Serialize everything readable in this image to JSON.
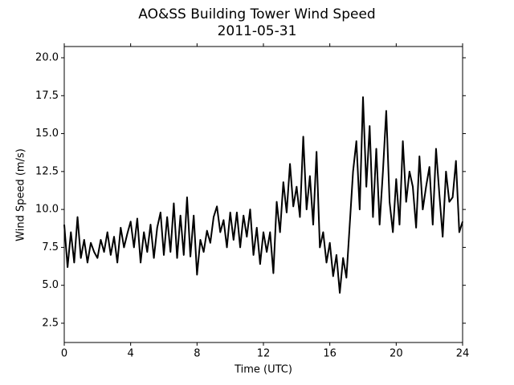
{
  "chart_data": {
    "type": "line",
    "title": "AO&SS Building Tower Wind Speed",
    "subtitle": "2011-05-31",
    "x_label": "Time (UTC)",
    "y_label": "Wind Speed (m/s)",
    "x": [
      0,
      0.2,
      0.4,
      0.6,
      0.8,
      1,
      1.2,
      1.4,
      1.6,
      1.8,
      2,
      2.2,
      2.4,
      2.6,
      2.8,
      3,
      3.2,
      3.4,
      3.6,
      3.8,
      4,
      4.2,
      4.4,
      4.6,
      4.8,
      5,
      5.2,
      5.4,
      5.6,
      5.8,
      6,
      6.2,
      6.4,
      6.6,
      6.8,
      7,
      7.2,
      7.4,
      7.6,
      7.8,
      8,
      8.2,
      8.4,
      8.6,
      8.8,
      9,
      9.2,
      9.4,
      9.6,
      9.8,
      10,
      10.2,
      10.4,
      10.6,
      10.8,
      11,
      11.2,
      11.4,
      11.6,
      11.8,
      12,
      12.2,
      12.4,
      12.6,
      12.8,
      13,
      13.2,
      13.4,
      13.6,
      13.8,
      14,
      14.2,
      14.4,
      14.6,
      14.8,
      15,
      15.2,
      15.4,
      15.6,
      15.8,
      16,
      16.2,
      16.4,
      16.6,
      16.8,
      17,
      17.2,
      17.4,
      17.6,
      17.8,
      18,
      18.2,
      18.4,
      18.6,
      18.8,
      19,
      19.2,
      19.4,
      19.6,
      19.8,
      20,
      20.2,
      20.4,
      20.6,
      20.8,
      21,
      21.2,
      21.4,
      21.6,
      21.8,
      22,
      22.2,
      22.4,
      22.6,
      22.8,
      23,
      23.2,
      23.4,
      23.6,
      23.8,
      24
    ],
    "series": [
      {
        "name": "Wind Speed",
        "color": "#000000",
        "values": [
          9.0,
          6.2,
          8.5,
          6.5,
          9.5,
          6.8,
          8.0,
          6.5,
          7.8,
          7.2,
          6.8,
          8.0,
          7.2,
          8.5,
          7.0,
          8.2,
          6.5,
          8.8,
          7.5,
          8.4,
          9.2,
          7.5,
          9.4,
          6.5,
          8.5,
          7.2,
          9.0,
          6.8,
          8.8,
          9.8,
          7.0,
          9.5,
          7.2,
          10.4,
          6.8,
          9.6,
          7.0,
          10.8,
          6.9,
          9.6,
          5.7,
          8.0,
          7.2,
          8.6,
          7.8,
          9.5,
          10.2,
          8.5,
          9.3,
          7.5,
          9.8,
          8.0,
          9.8,
          7.5,
          9.6,
          8.2,
          10.0,
          7.0,
          8.8,
          6.4,
          8.5,
          7.2,
          8.5,
          5.8,
          10.5,
          8.5,
          11.8,
          9.8,
          13.0,
          10.2,
          11.5,
          9.5,
          14.8,
          10.0,
          12.2,
          9.0,
          13.8,
          7.5,
          8.5,
          6.5,
          7.8,
          5.6,
          7.0,
          4.5,
          6.8,
          5.5,
          9.0,
          12.5,
          14.5,
          10.0,
          17.4,
          11.5,
          15.5,
          9.5,
          14.0,
          9.0,
          12.5,
          16.5,
          10.5,
          8.5,
          12.0,
          9.0,
          14.5,
          10.5,
          12.5,
          11.5,
          8.8,
          13.5,
          10.0,
          11.5,
          12.8,
          9.0,
          14.0,
          11.0,
          8.2,
          12.5,
          10.5,
          10.8,
          13.2,
          8.5,
          9.2
        ]
      }
    ],
    "xlim": [
      0,
      24
    ],
    "ylim": [
      1.23,
      20.74
    ],
    "xticks": [
      0,
      4,
      8,
      12,
      16,
      20,
      24
    ],
    "yticks": [
      2.5,
      {
        "value": 5,
        "label": "5.0"
      },
      7.5,
      {
        "value": 10,
        "label": "10.0"
      },
      12.5,
      {
        "value": 15,
        "label": "15.0"
      },
      17.5,
      {
        "value": 20,
        "label": "20.0"
      }
    ],
    "grid": false
  }
}
